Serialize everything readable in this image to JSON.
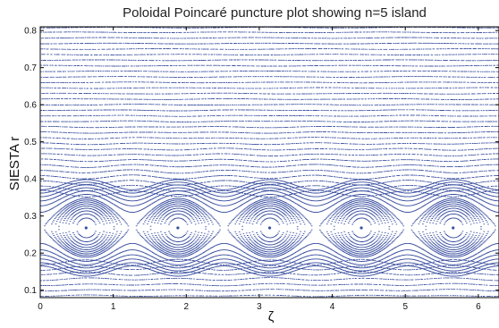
{
  "chart_data": {
    "type": "scatter",
    "title": "Poloidal Poincaré puncture plot showing n=5 island",
    "xlabel": "ζ",
    "ylabel": "SIESTA r",
    "xlim": [
      0,
      6.2832
    ],
    "ylim": [
      0.08,
      0.81
    ],
    "x_ticks": [
      0,
      1,
      2,
      3,
      4,
      5,
      6
    ],
    "y_ticks": [
      0.1,
      0.2,
      0.3,
      0.4,
      0.5,
      0.6,
      0.7,
      0.8
    ],
    "grid": false,
    "legend": "none",
    "marker_color": "#3b50a0",
    "island": {
      "mode_number": 5,
      "o_points": [
        {
          "x": 0.628,
          "y": 0.268
        },
        {
          "x": 1.885,
          "y": 0.268
        },
        {
          "x": 3.142,
          "y": 0.268
        },
        {
          "x": 4.398,
          "y": 0.268
        },
        {
          "x": 5.655,
          "y": 0.268
        }
      ],
      "x_points": [
        {
          "x": 0.0,
          "y": 0.268
        },
        {
          "x": 1.257,
          "y": 0.268
        },
        {
          "x": 2.513,
          "y": 0.268
        },
        {
          "x": 3.77,
          "y": 0.268
        },
        {
          "x": 5.027,
          "y": 0.268
        },
        {
          "x": 6.283,
          "y": 0.268
        }
      ],
      "half_width": 0.08
    },
    "flux_surface_levels_r": [
      0.085,
      0.1,
      0.115,
      0.13,
      0.145,
      0.16,
      0.175,
      0.36,
      0.375,
      0.39,
      0.405,
      0.42,
      0.435,
      0.45,
      0.465,
      0.48,
      0.495,
      0.51,
      0.525,
      0.54,
      0.555,
      0.57,
      0.585,
      0.6,
      0.615,
      0.63,
      0.645,
      0.66,
      0.675,
      0.69,
      0.705,
      0.72,
      0.735,
      0.75,
      0.765,
      0.78,
      0.795,
      0.808
    ]
  }
}
